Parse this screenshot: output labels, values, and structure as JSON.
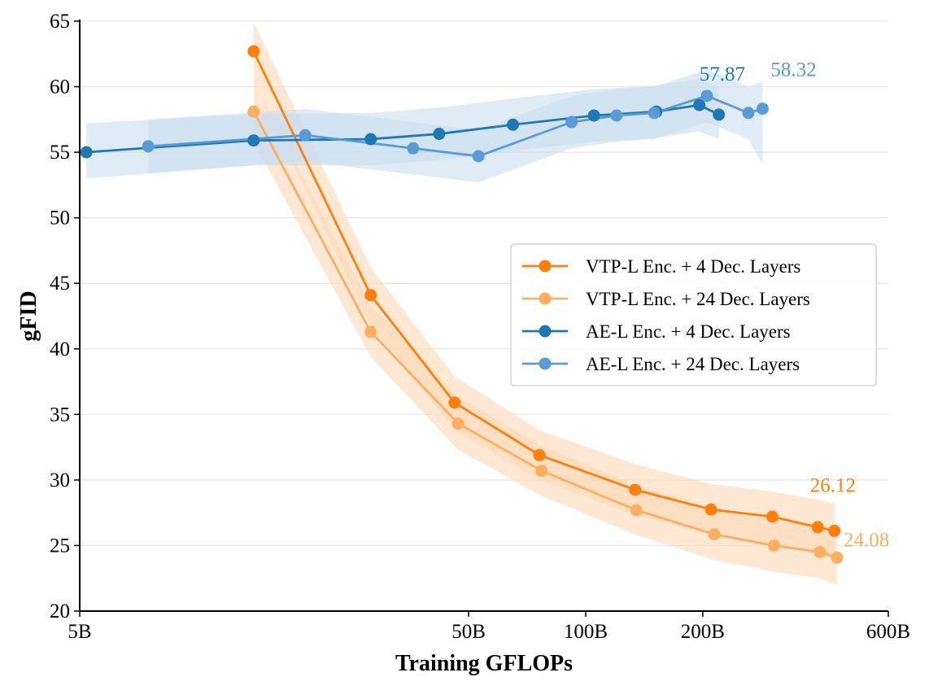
{
  "chart_data": {
    "type": "line",
    "title": "",
    "xlabel": "Training GFLOPs",
    "ylabel": "gFID",
    "xscale": "log",
    "xlim": [
      5,
      600
    ],
    "ylim": [
      20,
      65
    ],
    "xticks": [
      {
        "value": 5,
        "label": "5B"
      },
      {
        "value": 50,
        "label": "50B"
      },
      {
        "value": 100,
        "label": "100B"
      },
      {
        "value": 200,
        "label": "200B"
      },
      {
        "value": 600,
        "label": "600B"
      }
    ],
    "yticks": [
      20,
      25,
      30,
      35,
      40,
      45,
      50,
      55,
      60,
      65
    ],
    "grid": "horizontal",
    "legend_position": "center-right",
    "series": [
      {
        "name": "VTP-L Enc. + 4 Dec. Layers",
        "color": "#ff7f0e",
        "band_color": "#fdd9b5",
        "x": [
          14,
          28,
          46,
          76,
          134,
          210,
          302,
          395,
          436
        ],
        "y": [
          62.7,
          44.1,
          35.9,
          31.9,
          29.25,
          27.75,
          27.2,
          26.4,
          26.12
        ],
        "band_lower": [
          60.3,
          41.8,
          33.8,
          30.0,
          27.3,
          25.9,
          25.2,
          24.3,
          24.0
        ],
        "band_upper": [
          64.9,
          46.2,
          37.9,
          33.8,
          31.2,
          29.7,
          29.1,
          28.5,
          28.2
        ],
        "annotation": "26.12"
      },
      {
        "name": "VTP-L Enc. + 24 Dec. Layers",
        "color": "#fdae61",
        "band_color": "#fdd9b5",
        "x": [
          14,
          28,
          47,
          77,
          135,
          214,
          305,
          400,
          443
        ],
        "y": [
          58.1,
          41.3,
          34.3,
          30.7,
          27.7,
          25.85,
          25.0,
          24.5,
          24.08
        ],
        "band_lower": [
          55.8,
          39.4,
          32.3,
          28.8,
          25.8,
          23.9,
          23.0,
          22.5,
          22.0
        ],
        "band_upper": [
          60.3,
          43.3,
          36.3,
          32.6,
          29.6,
          27.8,
          27.0,
          26.5,
          26.2
        ],
        "annotation": "24.08"
      },
      {
        "name": "AE-L Enc. + 4 Dec. Layers",
        "color": "#1f77b4",
        "band_color": "#c9ddef",
        "x": [
          5.2,
          14,
          28,
          42,
          65,
          105,
          152,
          196,
          220
        ],
        "y": [
          55.0,
          55.9,
          56.0,
          56.4,
          57.1,
          57.8,
          58.1,
          58.6,
          57.87
        ],
        "band_lower": [
          53.0,
          54.0,
          54.0,
          54.4,
          55.1,
          55.8,
          56.1,
          56.6,
          56.0
        ],
        "band_upper": [
          57.2,
          57.9,
          58.0,
          58.4,
          59.1,
          59.8,
          60.1,
          60.6,
          59.9
        ],
        "annotation": "57.87"
      },
      {
        "name": "AE-L Enc. + 24 Dec. Layers",
        "color": "#5b9bd5",
        "band_color": "#c9ddef",
        "x": [
          7.5,
          19,
          36,
          53,
          92,
          120,
          150,
          205,
          262,
          285
        ],
        "y": [
          55.45,
          56.3,
          55.3,
          54.7,
          57.3,
          57.8,
          58.0,
          59.3,
          58.0,
          58.32
        ],
        "band_lower": [
          53.4,
          54.3,
          53.3,
          52.7,
          55.3,
          55.8,
          56.0,
          57.3,
          56.0,
          54.1
        ],
        "band_upper": [
          57.5,
          58.3,
          57.3,
          56.7,
          59.3,
          59.8,
          60.0,
          61.3,
          60.0,
          60.4
        ],
        "annotation": "58.32"
      }
    ]
  }
}
